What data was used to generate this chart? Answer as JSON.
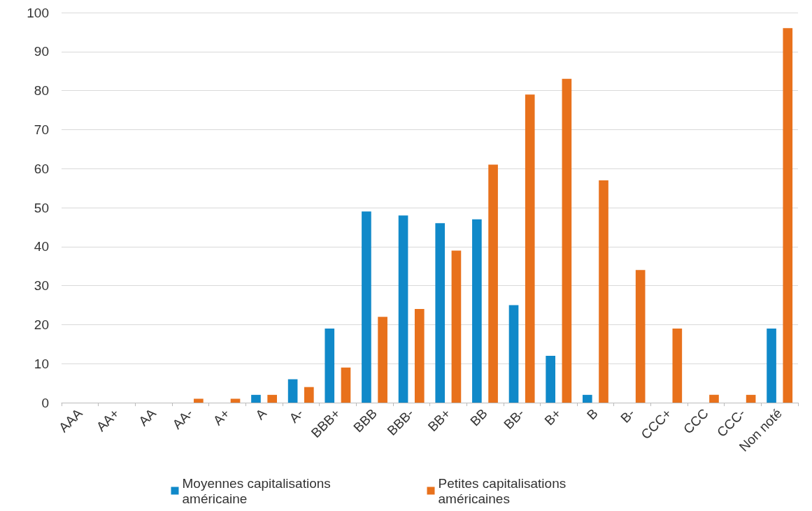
{
  "chart_data": {
    "type": "bar",
    "categories": [
      "AAA",
      "AA+",
      "AA",
      "AA-",
      "A+",
      "A",
      "A-",
      "BBB+",
      "BBB",
      "BBB-",
      "BB+",
      "BB",
      "BB-",
      "B+",
      "B",
      "B-",
      "CCC+",
      "CCC",
      "CCC-",
      "Non noté"
    ],
    "series": [
      {
        "name": "Moyennes capitalisations américaine",
        "color": "#1089c9",
        "values": [
          0,
          0,
          0,
          0,
          0,
          2,
          6,
          19,
          49,
          48,
          46,
          47,
          25,
          12,
          2,
          0,
          0,
          0,
          0,
          19
        ]
      },
      {
        "name": "Petites capitalisations américaines",
        "color": "#e8711c",
        "values": [
          0,
          0,
          0,
          1,
          1,
          2,
          4,
          9,
          22,
          24,
          39,
          61,
          79,
          83,
          57,
          34,
          19,
          2,
          2,
          96
        ]
      }
    ],
    "ylim": [
      0,
      100
    ],
    "yticks": [
      0,
      10,
      20,
      30,
      40,
      50,
      60,
      70,
      80,
      90,
      100
    ],
    "grid": "y",
    "legend": "bottom"
  }
}
